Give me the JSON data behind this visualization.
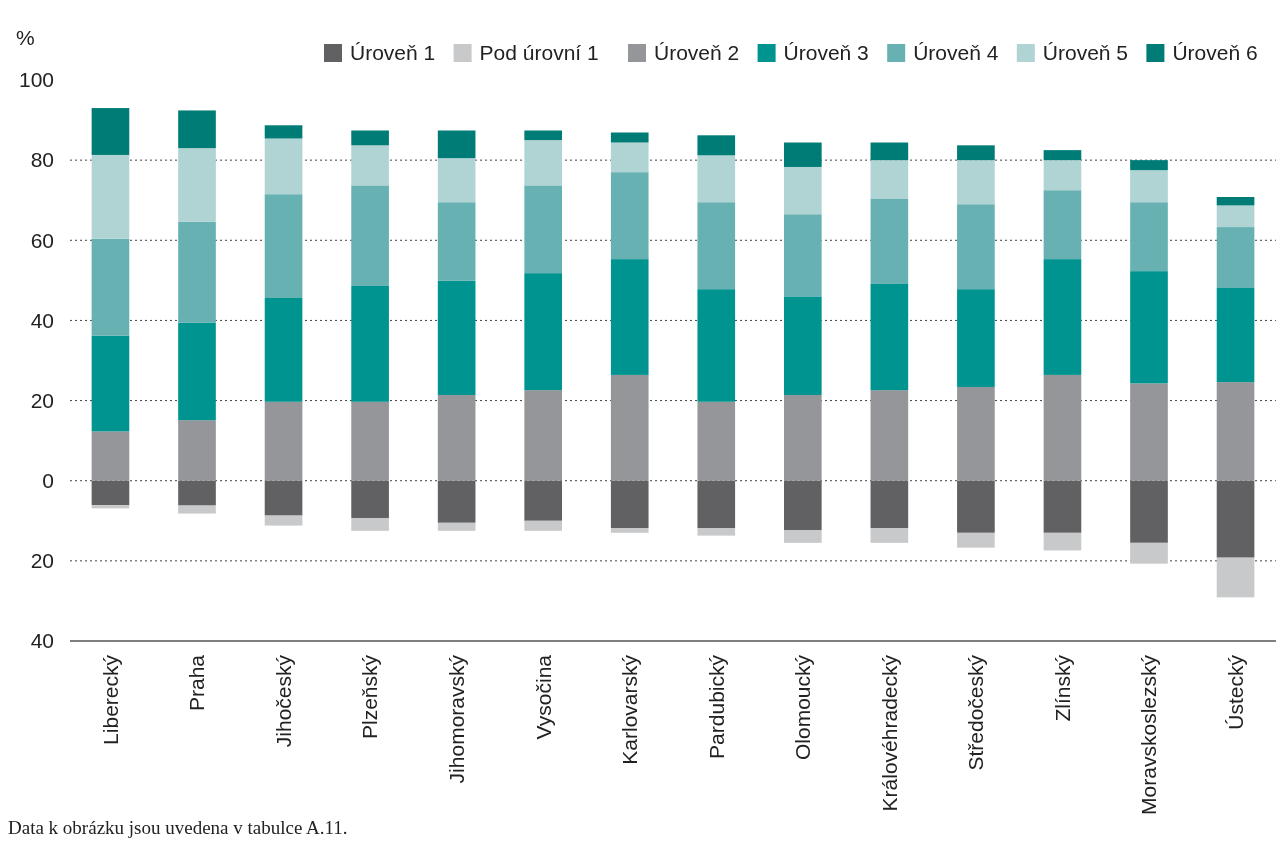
{
  "chart_data": {
    "type": "bar",
    "stacked": true,
    "ylabel": "%",
    "categories": [
      "Liberecký",
      "Praha",
      "Jihočeský",
      "Plzeňský",
      "Jihomoravský",
      "Vysočina",
      "Karlovarský",
      "Pardubický",
      "Olomoucký",
      "Královéhradecký",
      "Středočeský",
      "Zlínský",
      "Moravskoslezský",
      "Ústecký"
    ],
    "series": [
      {
        "name": "Úroveň 1",
        "color": "#616163",
        "values": [
          -6.1,
          -6.2,
          -8.7,
          -9.3,
          -10.5,
          -10.0,
          -11.8,
          -11.8,
          -12.3,
          -11.8,
          -13.0,
          -13.0,
          -15.5,
          -19.2
        ]
      },
      {
        "name": "Pod úrovní 1",
        "color": "#c8c9cb",
        "values": [
          -0.8,
          -2.0,
          -2.5,
          -3.2,
          -2.0,
          -2.5,
          -1.2,
          -1.9,
          -3.2,
          -3.7,
          -3.7,
          -4.4,
          -5.2,
          -9.9
        ]
      },
      {
        "name": "Úroveň 2",
        "color": "#959699",
        "values": [
          12.3,
          15.1,
          19.7,
          19.7,
          21.4,
          22.6,
          26.4,
          19.7,
          21.4,
          22.6,
          23.4,
          26.4,
          24.3,
          24.6
        ]
      },
      {
        "name": "Úroveň 3",
        "color": "#009490",
        "values": [
          23.9,
          24.3,
          25.9,
          28.9,
          28.5,
          29.2,
          28.9,
          28.1,
          24.6,
          26.5,
          24.4,
          28.9,
          28.0,
          23.5
        ]
      },
      {
        "name": "Úroveň 4",
        "color": "#67b1b2",
        "values": [
          24.2,
          25.2,
          25.9,
          25.1,
          19.6,
          21.9,
          21.7,
          21.7,
          20.5,
          21.2,
          21.2,
          17.2,
          17.2,
          15.2
        ]
      },
      {
        "name": "Úroveň 5",
        "color": "#b0d3d4",
        "values": [
          20.9,
          18.4,
          13.9,
          10.0,
          11.0,
          11.3,
          7.4,
          11.7,
          11.8,
          9.7,
          11.0,
          7.5,
          8.0,
          5.4
        ]
      },
      {
        "name": "Úroveň 6",
        "color": "#007c76",
        "values": [
          11.7,
          9.4,
          3.3,
          3.7,
          6.9,
          2.4,
          2.5,
          5.0,
          6.1,
          4.4,
          3.7,
          2.5,
          2.5,
          2.1
        ]
      }
    ],
    "ylim": [
      -40,
      100
    ],
    "yticks": [
      {
        "value": -40,
        "label": "40"
      },
      {
        "value": -20,
        "label": "20"
      },
      0,
      20,
      40,
      60,
      80,
      100
    ],
    "grid": "y",
    "legend": "top",
    "annotations": [
      "Data k obrázku jsou uvedena v tabulce A.11."
    ]
  }
}
